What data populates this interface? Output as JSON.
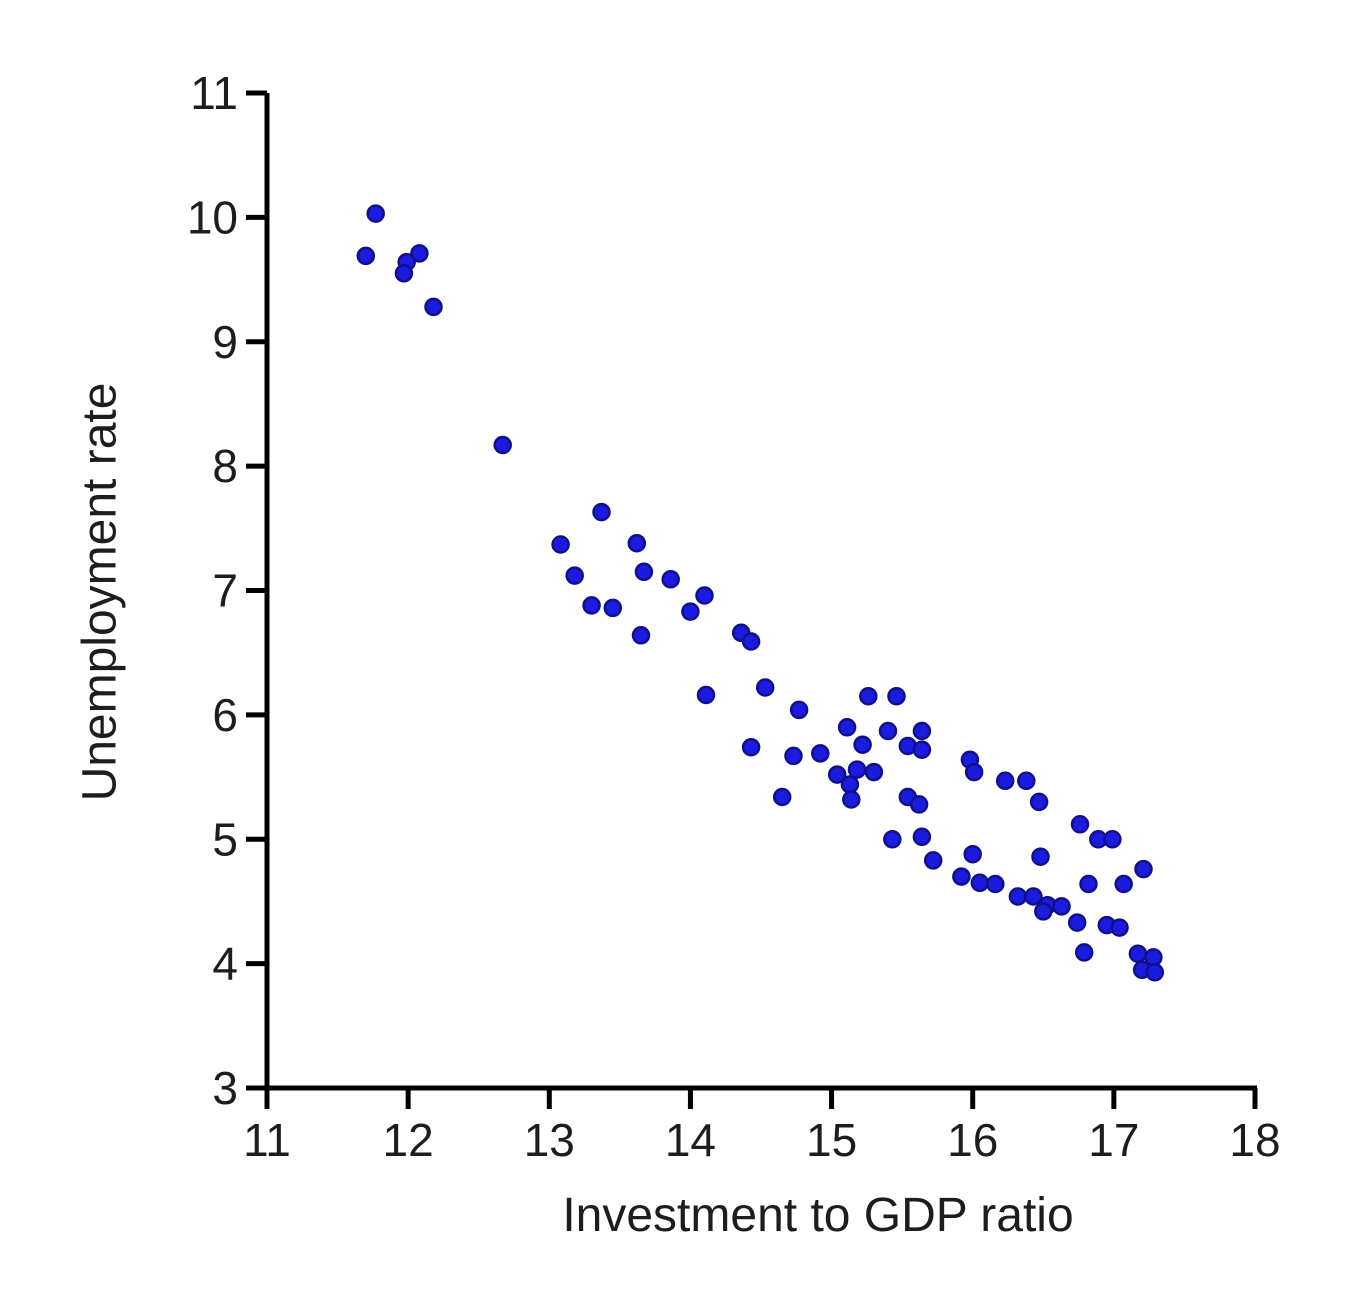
{
  "figure": {
    "background": "#ffffff"
  },
  "chart_data": {
    "type": "scatter",
    "title": "",
    "xlabel": "Investment to GDP ratio",
    "ylabel": "Unemployment rate",
    "xlim": [
      11,
      18
    ],
    "ylim": [
      3,
      11
    ],
    "xticks": [
      11,
      12,
      13,
      14,
      15,
      16,
      17,
      18
    ],
    "yticks": [
      3,
      4,
      5,
      6,
      7,
      8,
      9,
      10,
      11
    ],
    "grid": false,
    "legend": "none",
    "marker_color": "#1b1be0",
    "marker_edge_color": "#10108c",
    "axis_color": "#000000",
    "tick_label_color": "#1d1d1d",
    "points": [
      [
        11.77,
        10.03
      ],
      [
        11.7,
        9.69
      ],
      [
        12.08,
        9.71
      ],
      [
        11.99,
        9.64
      ],
      [
        11.97,
        9.55
      ],
      [
        12.18,
        9.28
      ],
      [
        12.67,
        8.17
      ],
      [
        13.37,
        7.63
      ],
      [
        13.08,
        7.37
      ],
      [
        13.62,
        7.38
      ],
      [
        13.18,
        7.12
      ],
      [
        13.67,
        7.15
      ],
      [
        13.86,
        7.09
      ],
      [
        14.1,
        6.96
      ],
      [
        13.3,
        6.88
      ],
      [
        13.45,
        6.86
      ],
      [
        14.0,
        6.83
      ],
      [
        13.65,
        6.64
      ],
      [
        14.36,
        6.66
      ],
      [
        14.43,
        6.59
      ],
      [
        14.11,
        6.16
      ],
      [
        14.53,
        6.22
      ],
      [
        14.77,
        6.04
      ],
      [
        14.43,
        5.74
      ],
      [
        14.73,
        5.67
      ],
      [
        14.92,
        5.69
      ],
      [
        14.65,
        5.34
      ],
      [
        15.26,
        6.15
      ],
      [
        15.46,
        6.15
      ],
      [
        15.11,
        5.9
      ],
      [
        15.4,
        5.87
      ],
      [
        15.64,
        5.87
      ],
      [
        15.54,
        5.75
      ],
      [
        15.64,
        5.72
      ],
      [
        15.22,
        5.76
      ],
      [
        15.98,
        5.64
      ],
      [
        16.01,
        5.54
      ],
      [
        15.04,
        5.52
      ],
      [
        15.18,
        5.56
      ],
      [
        15.13,
        5.44
      ],
      [
        15.3,
        5.54
      ],
      [
        16.23,
        5.47
      ],
      [
        16.38,
        5.47
      ],
      [
        15.14,
        5.32
      ],
      [
        15.54,
        5.34
      ],
      [
        15.62,
        5.28
      ],
      [
        16.47,
        5.3
      ],
      [
        16.76,
        5.12
      ],
      [
        16.89,
        5.0
      ],
      [
        16.99,
        5.0
      ],
      [
        15.43,
        5.0
      ],
      [
        15.64,
        5.02
      ],
      [
        16.48,
        4.86
      ],
      [
        15.72,
        4.83
      ],
      [
        16.0,
        4.88
      ],
      [
        17.21,
        4.76
      ],
      [
        15.92,
        4.7
      ],
      [
        16.05,
        4.65
      ],
      [
        16.16,
        4.64
      ],
      [
        16.82,
        4.64
      ],
      [
        17.07,
        4.64
      ],
      [
        16.32,
        4.54
      ],
      [
        16.43,
        4.54
      ],
      [
        16.53,
        4.47
      ],
      [
        16.63,
        4.46
      ],
      [
        16.5,
        4.42
      ],
      [
        16.74,
        4.33
      ],
      [
        16.95,
        4.31
      ],
      [
        17.04,
        4.29
      ],
      [
        16.79,
        4.09
      ],
      [
        17.17,
        4.08
      ],
      [
        17.28,
        4.05
      ],
      [
        17.2,
        3.95
      ],
      [
        17.29,
        3.93
      ]
    ]
  }
}
